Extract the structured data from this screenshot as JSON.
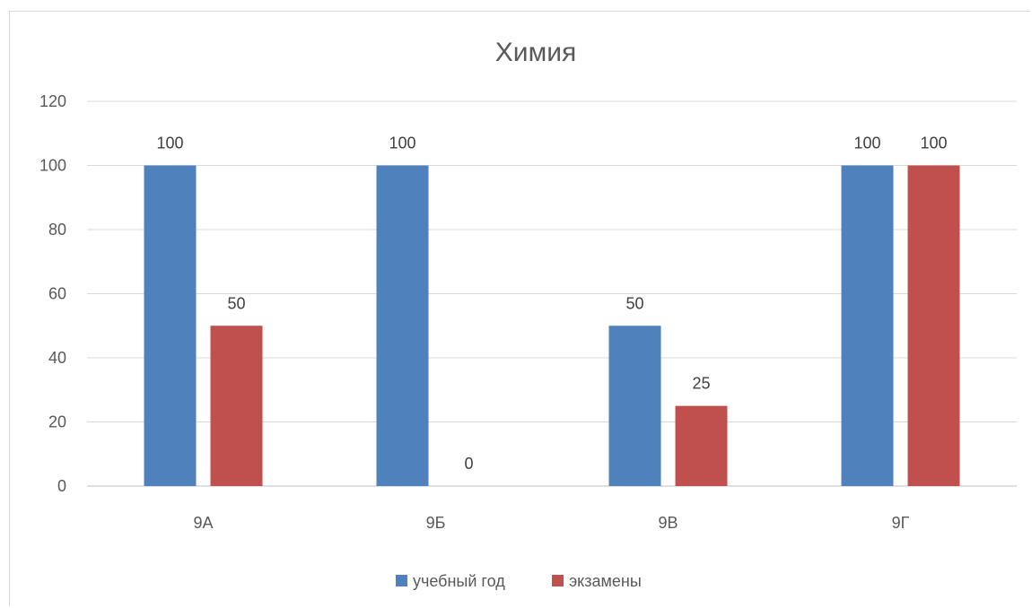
{
  "chart_data": {
    "type": "bar",
    "title": "Химия",
    "xlabel": "",
    "ylabel": "",
    "categories": [
      "9А",
      "9Б",
      "9В",
      "9Г"
    ],
    "series": [
      {
        "name": "учебный год",
        "color": "#4f81bd",
        "values": [
          100,
          100,
          50,
          100
        ]
      },
      {
        "name": "экзамены",
        "color": "#c0504d",
        "values": [
          50,
          0,
          25,
          100
        ]
      }
    ],
    "ylim": [
      0,
      120
    ],
    "yticks": [
      0,
      20,
      40,
      60,
      80,
      100,
      120
    ],
    "grid": true,
    "legend_position": "bottom"
  }
}
